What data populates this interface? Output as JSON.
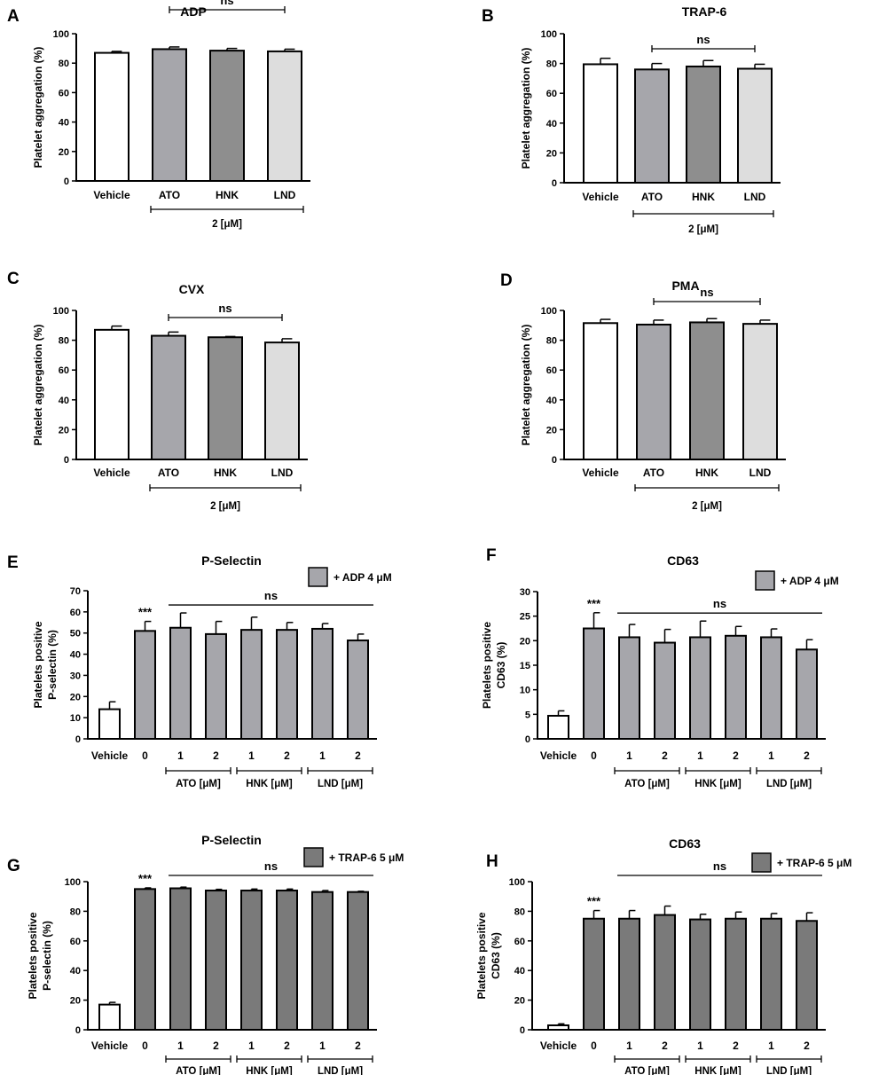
{
  "chart_data": [
    {
      "panel": "A",
      "type": "bar",
      "title": "ADP",
      "ylabel": "Platelet aggregation (%)",
      "ylim": [
        0,
        100
      ],
      "yticks": [
        0,
        20,
        40,
        60,
        80,
        100
      ],
      "categories": [
        "Vehicle",
        "ATO",
        "HNK",
        "LND"
      ],
      "values": [
        87,
        89.5,
        88.5,
        88
      ],
      "errors": [
        1,
        1.5,
        1.5,
        1.5
      ],
      "fills": [
        "#ffffff",
        "#a6a6ab",
        "#8e8e8e",
        "#dddddd"
      ],
      "annotation": {
        "text": "ns",
        "from": 1,
        "to": 3
      },
      "groups": [
        {
          "label": "2 [μM]",
          "from": 1,
          "to": 3
        }
      ]
    },
    {
      "panel": "B",
      "type": "bar",
      "title": "TRAP-6",
      "ylabel": "Platelet aggregation (%)",
      "ylim": [
        0,
        100
      ],
      "yticks": [
        0,
        20,
        40,
        60,
        80,
        100
      ],
      "categories": [
        "Vehicle",
        "ATO",
        "HNK",
        "LND"
      ],
      "values": [
        79.5,
        76,
        78,
        76.5
      ],
      "errors": [
        4,
        4,
        4,
        3
      ],
      "fills": [
        "#ffffff",
        "#a6a6ab",
        "#8e8e8e",
        "#dddddd"
      ],
      "annotation": {
        "text": "ns",
        "from": 1,
        "to": 3
      },
      "groups": [
        {
          "label": "2 [μM]",
          "from": 1,
          "to": 3
        }
      ]
    },
    {
      "panel": "C",
      "type": "bar",
      "title": "CVX",
      "ylabel": "Platelet aggregation (%)",
      "ylim": [
        0,
        100
      ],
      "yticks": [
        0,
        20,
        40,
        60,
        80,
        100
      ],
      "categories": [
        "Vehicle",
        "ATO",
        "HNK",
        "LND"
      ],
      "values": [
        87,
        83,
        82,
        78.5
      ],
      "errors": [
        2.5,
        2.5,
        0.5,
        2.5
      ],
      "fills": [
        "#ffffff",
        "#a6a6ab",
        "#8e8e8e",
        "#dddddd"
      ],
      "annotation": {
        "text": "ns",
        "from": 1,
        "to": 3
      },
      "groups": [
        {
          "label": "2 [μM]",
          "from": 1,
          "to": 3
        }
      ]
    },
    {
      "panel": "D",
      "type": "bar",
      "title": "PMA",
      "ylabel": "Platelet aggregation (%)",
      "ylim": [
        0,
        100
      ],
      "yticks": [
        0,
        20,
        40,
        60,
        80,
        100
      ],
      "categories": [
        "Vehicle",
        "ATO",
        "HNK",
        "LND"
      ],
      "values": [
        91.5,
        90.5,
        92,
        91
      ],
      "errors": [
        2.5,
        3,
        2.5,
        2.5
      ],
      "fills": [
        "#ffffff",
        "#a6a6ab",
        "#8e8e8e",
        "#dddddd"
      ],
      "annotation": {
        "text": "ns",
        "from": 1,
        "to": 3
      },
      "groups": [
        {
          "label": "2 [μM]",
          "from": 1,
          "to": 3
        }
      ]
    },
    {
      "panel": "E",
      "type": "bar",
      "title": "P-Selectin",
      "ylabel": [
        "Platelets positive",
        "P-selectin (%)"
      ],
      "ylim": [
        0,
        70
      ],
      "yticks": [
        0,
        10,
        20,
        30,
        40,
        50,
        60,
        70
      ],
      "categories": [
        "Vehicle",
        "0",
        "1",
        "2",
        "1",
        "2",
        "1",
        "2"
      ],
      "values": [
        14,
        51,
        52.5,
        49.5,
        51.5,
        51.5,
        52,
        46.5
      ],
      "errors": [
        3.5,
        4.5,
        7,
        6,
        6,
        3.5,
        2.5,
        3
      ],
      "fills": [
        "#ffffff",
        "#a6a6ab",
        "#a6a6ab",
        "#a6a6ab",
        "#a6a6ab",
        "#a6a6ab",
        "#a6a6ab",
        "#a6a6ab"
      ],
      "stars": {
        "text": "***",
        "index": 1
      },
      "annotation": {
        "text": "ns",
        "from": 2,
        "to": 7
      },
      "groups": [
        {
          "label": "ATO [μM]",
          "from": 2,
          "to": 3
        },
        {
          "label": "HNK [μM]",
          "from": 4,
          "to": 5
        },
        {
          "label": "LND [μM]",
          "from": 6,
          "to": 7
        }
      ],
      "legend": {
        "label": "+ ADP 4 μM",
        "color": "#a6a6ab"
      }
    },
    {
      "panel": "F",
      "type": "bar",
      "title": "CD63",
      "ylabel": [
        "Platelets positive",
        "CD63  (%)"
      ],
      "ylim": [
        0,
        30
      ],
      "yticks": [
        0,
        5,
        10,
        15,
        20,
        25,
        30
      ],
      "categories": [
        "Vehicle",
        "0",
        "1",
        "2",
        "1",
        "2",
        "1",
        "2"
      ],
      "values": [
        4.7,
        22.5,
        20.7,
        19.6,
        20.7,
        21,
        20.7,
        18.2
      ],
      "errors": [
        1,
        3.2,
        2.6,
        2.7,
        3.3,
        1.9,
        1.7,
        2
      ],
      "fills": [
        "#ffffff",
        "#a6a6ab",
        "#a6a6ab",
        "#a6a6ab",
        "#a6a6ab",
        "#a6a6ab",
        "#a6a6ab",
        "#a6a6ab"
      ],
      "stars": {
        "text": "***",
        "index": 1
      },
      "annotation": {
        "text": "ns",
        "from": 2,
        "to": 7
      },
      "groups": [
        {
          "label": "ATO [μM]",
          "from": 2,
          "to": 3
        },
        {
          "label": "HNK [μM]",
          "from": 4,
          "to": 5
        },
        {
          "label": "LND [μM]",
          "from": 6,
          "to": 7
        }
      ],
      "legend": {
        "label": "+ ADP 4 μM",
        "color": "#a6a6ab"
      }
    },
    {
      "panel": "G",
      "type": "bar",
      "title": "P-Selectin",
      "ylabel": [
        "Platelets positive",
        "P-selectin (%)"
      ],
      "ylim": [
        0,
        100
      ],
      "yticks": [
        0,
        20,
        40,
        60,
        80,
        100
      ],
      "categories": [
        "Vehicle",
        "0",
        "1",
        "2",
        "1",
        "2",
        "1",
        "2"
      ],
      "values": [
        17,
        95,
        95.5,
        94,
        94,
        94,
        93,
        93
      ],
      "errors": [
        1.5,
        0.8,
        0.8,
        0.8,
        1,
        1,
        1,
        0.5
      ],
      "fills": [
        "#ffffff",
        "#7a7a7a",
        "#7a7a7a",
        "#7a7a7a",
        "#7a7a7a",
        "#7a7a7a",
        "#7a7a7a",
        "#7a7a7a"
      ],
      "stars": {
        "text": "***",
        "index": 1
      },
      "annotation": {
        "text": "ns",
        "from": 2,
        "to": 7
      },
      "groups": [
        {
          "label": "ATO [μM]",
          "from": 2,
          "to": 3
        },
        {
          "label": "HNK [μM]",
          "from": 4,
          "to": 5
        },
        {
          "label": "LND [μM]",
          "from": 6,
          "to": 7
        }
      ],
      "legend": {
        "label": "+ TRAP-6 5 μM",
        "color": "#7a7a7a"
      }
    },
    {
      "panel": "H",
      "type": "bar",
      "title": "CD63",
      "ylabel": [
        "Platelets positive",
        "CD63  (%)"
      ],
      "ylim": [
        0,
        100
      ],
      "yticks": [
        0,
        20,
        40,
        60,
        80,
        100
      ],
      "categories": [
        "Vehicle",
        "0",
        "1",
        "2",
        "1",
        "2",
        "1",
        "2"
      ],
      "values": [
        3,
        75,
        75,
        77.5,
        74.5,
        75,
        75,
        73.5
      ],
      "errors": [
        1,
        5.5,
        5.5,
        6,
        3.5,
        4.5,
        3.5,
        5.5
      ],
      "fills": [
        "#ffffff",
        "#7a7a7a",
        "#7a7a7a",
        "#7a7a7a",
        "#7a7a7a",
        "#7a7a7a",
        "#7a7a7a",
        "#7a7a7a"
      ],
      "stars": {
        "text": "***",
        "index": 1
      },
      "annotation": {
        "text": "ns",
        "from": 2,
        "to": 7
      },
      "groups": [
        {
          "label": "ATO [μM]",
          "from": 2,
          "to": 3
        },
        {
          "label": "HNK [μM]",
          "from": 4,
          "to": 5
        },
        {
          "label": "LND [μM]",
          "from": 6,
          "to": 7
        }
      ],
      "legend": {
        "label": "+  TRAP-6 5 μM",
        "color": "#7a7a7a"
      }
    }
  ]
}
